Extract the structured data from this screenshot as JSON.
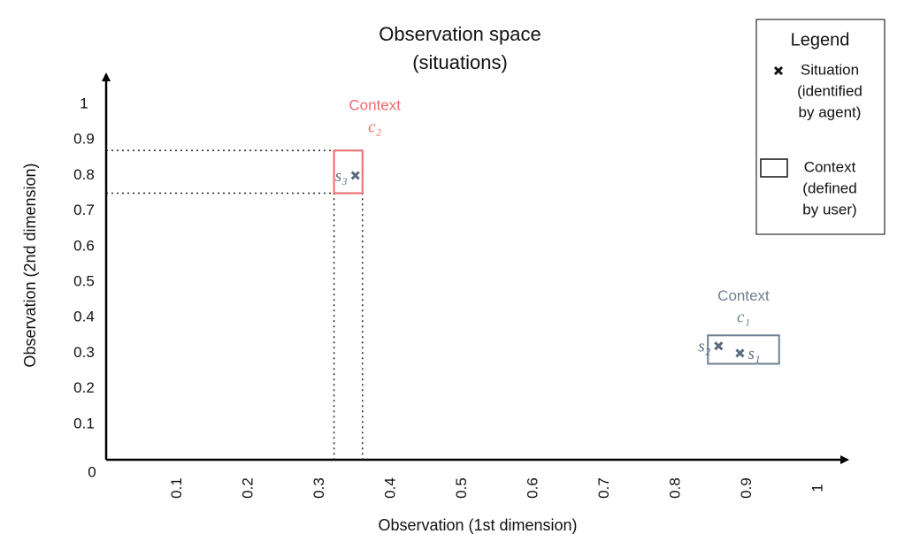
{
  "chart_data": {
    "type": "scatter",
    "title": [
      "Observation space",
      "(situations)"
    ],
    "xlabel": "Observation (1st dimension)",
    "ylabel": "Observation (2nd dimension)",
    "xlim": [
      0,
      1
    ],
    "ylim": [
      0,
      1
    ],
    "xticks": [
      0.1,
      0.2,
      0.3,
      0.4,
      0.5,
      0.6,
      0.7,
      0.8,
      0.9,
      1
    ],
    "yticks": [
      0,
      0.1,
      0.2,
      0.3,
      0.4,
      0.5,
      0.6,
      0.7,
      0.8,
      0.9,
      1
    ],
    "series": [
      {
        "x": [
          0.89,
          0.86,
          0.35
        ],
        "values": [
          0.3,
          0.32,
          0.8
        ],
        "labels": [
          "s₁",
          "s₂",
          "s₃"
        ],
        "color": "#5b6b7c"
      }
    ],
    "contexts": [
      {
        "label": "Context",
        "name": "c₁",
        "x": [
          0.845,
          0.945
        ],
        "y": [
          0.27,
          0.35
        ],
        "color": "#6e8196",
        "guides": false
      },
      {
        "label": "Context",
        "name": "c₂",
        "x": [
          0.32,
          0.36
        ],
        "y": [
          0.75,
          0.87
        ],
        "color": "#f06a6a",
        "guides": true
      }
    ],
    "legend": {
      "title": "Legend",
      "entries": [
        {
          "marker": "cross",
          "lines": [
            "Situation",
            "(identified",
            "by agent)"
          ]
        },
        {
          "marker": "box",
          "lines": [
            "Context",
            "(defined",
            "by user)"
          ]
        }
      ]
    }
  }
}
